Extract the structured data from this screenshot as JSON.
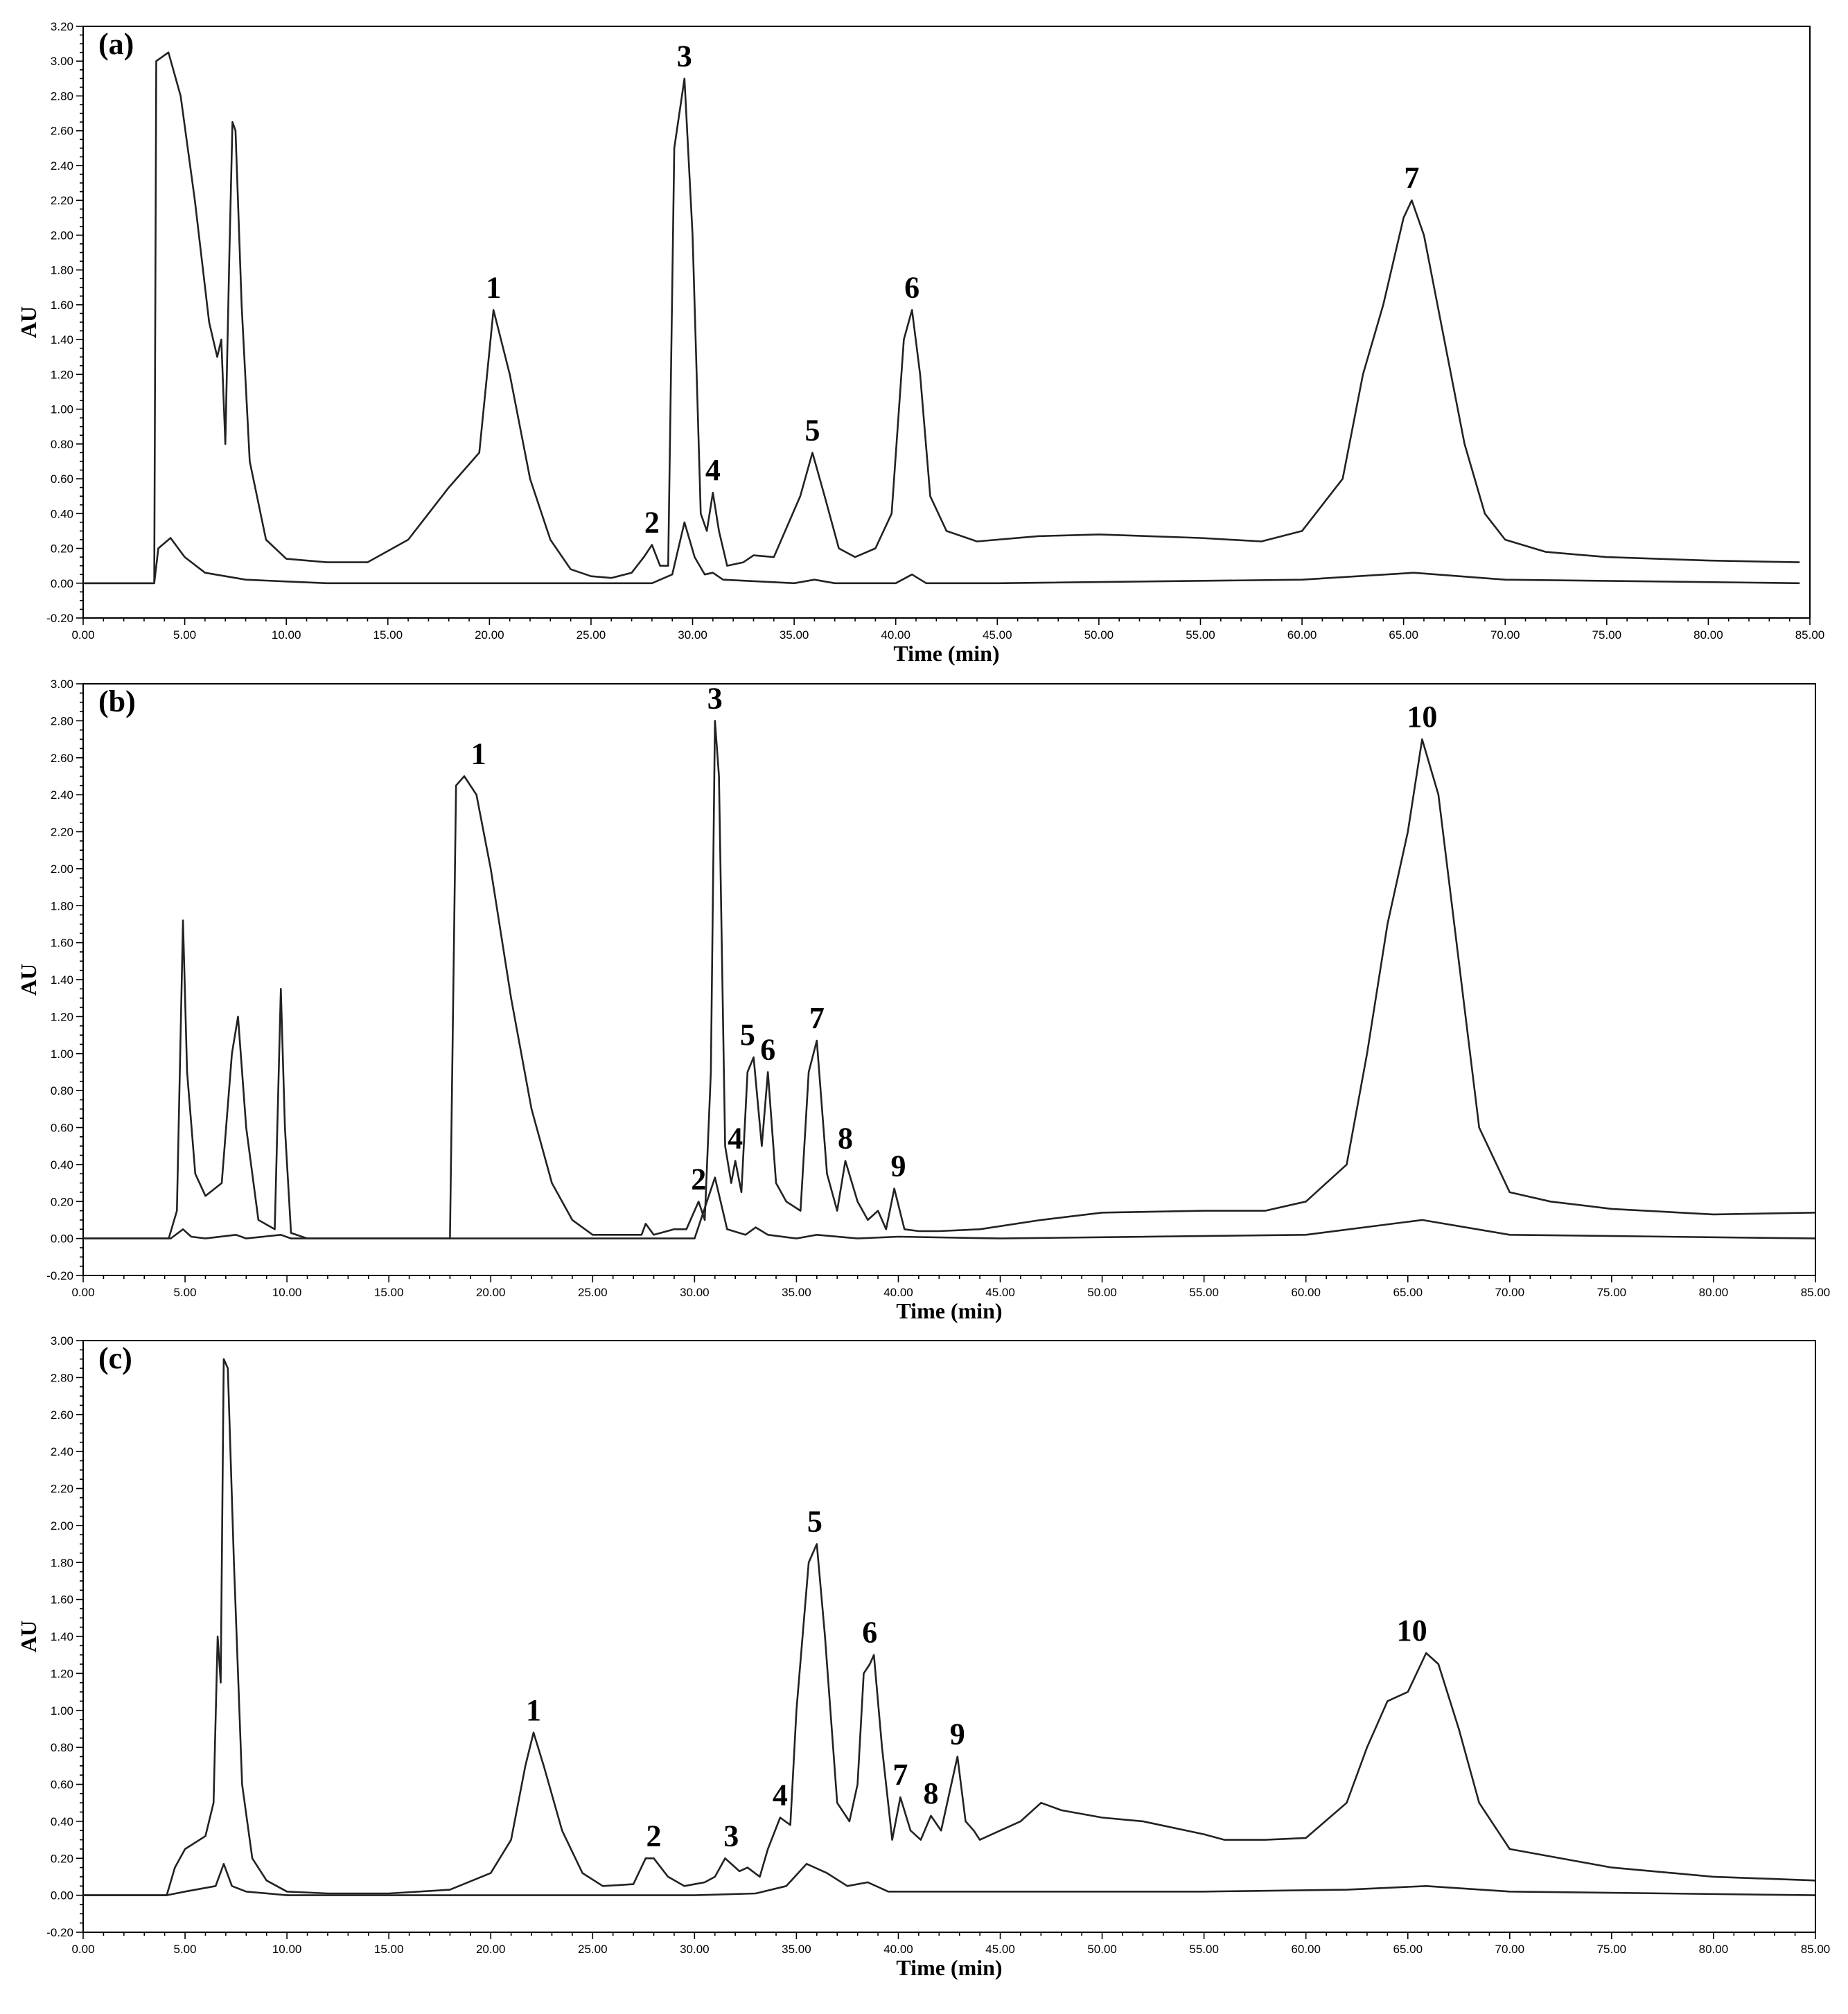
{
  "chart_data": [
    {
      "type": "line",
      "panel_label": "(a)",
      "xlabel": "Time (min)",
      "ylabel": "AU",
      "xlim": [
        0,
        85
      ],
      "ylim": [
        -0.2,
        3.2
      ],
      "x_ticks": [
        "0.00",
        "5.00",
        "10.00",
        "15.00",
        "20.00",
        "25.00",
        "30.00",
        "35.00",
        "40.00",
        "45.00",
        "50.00",
        "55.00",
        "60.00",
        "65.00",
        "70.00",
        "75.00",
        "80.00",
        "85.00"
      ],
      "y_ticks": [
        "-0.20",
        "0.00",
        "0.20",
        "0.40",
        "0.60",
        "0.80",
        "1.00",
        "1.20",
        "1.40",
        "1.60",
        "1.80",
        "2.00",
        "2.20",
        "2.40",
        "2.60",
        "2.80",
        "3.00",
        "3.20"
      ],
      "series": [
        {
          "name": "upper trace",
          "x": [
            0,
            3.5,
            3.6,
            4.2,
            4.8,
            5.5,
            6.2,
            6.6,
            6.8,
            7.0,
            7.2,
            7.35,
            7.5,
            7.8,
            8.2,
            9,
            10,
            12,
            14,
            16,
            18,
            19.5,
            20.2,
            21,
            22,
            23,
            24,
            25,
            26,
            27,
            27.6,
            28,
            28.4,
            28.8,
            29.1,
            29.6,
            30.0,
            30.4,
            30.7,
            31.0,
            31.3,
            31.7,
            32.5,
            33,
            34,
            35.3,
            35.9,
            36.5,
            37.2,
            38,
            39,
            39.8,
            40.4,
            40.8,
            41.2,
            41.7,
            42.5,
            44,
            47,
            50,
            55,
            58,
            60,
            62,
            63,
            64,
            65,
            65.4,
            66,
            67,
            68,
            69,
            70,
            72,
            75,
            80,
            84.5
          ],
          "values": [
            0,
            0,
            3.0,
            3.05,
            2.8,
            2.2,
            1.5,
            1.3,
            1.4,
            0.8,
            1.9,
            2.65,
            2.6,
            1.6,
            0.7,
            0.25,
            0.14,
            0.12,
            0.12,
            0.25,
            0.55,
            0.75,
            1.57,
            1.2,
            0.6,
            0.25,
            0.08,
            0.04,
            0.03,
            0.06,
            0.15,
            0.22,
            0.1,
            0.1,
            2.5,
            2.9,
            2.0,
            0.4,
            0.3,
            0.52,
            0.3,
            0.1,
            0.12,
            0.16,
            0.15,
            0.5,
            0.75,
            0.5,
            0.2,
            0.15,
            0.2,
            0.4,
            1.4,
            1.57,
            1.2,
            0.5,
            0.3,
            0.24,
            0.27,
            0.28,
            0.26,
            0.24,
            0.3,
            0.6,
            1.2,
            1.6,
            2.1,
            2.2,
            2.0,
            1.4,
            0.8,
            0.4,
            0.25,
            0.18,
            0.15,
            0.13,
            0.12
          ]
        },
        {
          "name": "lower trace",
          "x": [
            0,
            3.5,
            3.7,
            4.3,
            5.0,
            6,
            7,
            8,
            10,
            12,
            28,
            29,
            29.6,
            30.1,
            30.6,
            31.0,
            31.5,
            35,
            36,
            37,
            40,
            40.8,
            41.5,
            45,
            60,
            65.5,
            70,
            84.5
          ],
          "values": [
            0,
            0,
            0.2,
            0.26,
            0.15,
            0.06,
            0.04,
            0.02,
            0.01,
            0.0,
            0.0,
            0.05,
            0.35,
            0.15,
            0.05,
            0.06,
            0.02,
            0.0,
            0.02,
            0.0,
            0.0,
            0.05,
            0.0,
            0.0,
            0.02,
            0.06,
            0.02,
            0.0
          ]
        }
      ],
      "peak_labels": [
        {
          "text": "1",
          "x": 20.2,
          "y": 1.57
        },
        {
          "text": "2",
          "x": 28.0,
          "y": 0.22
        },
        {
          "text": "3",
          "x": 29.6,
          "y": 2.9
        },
        {
          "text": "4",
          "x": 31.0,
          "y": 0.52
        },
        {
          "text": "5",
          "x": 35.9,
          "y": 0.75
        },
        {
          "text": "6",
          "x": 40.8,
          "y": 1.57
        },
        {
          "text": "7",
          "x": 65.4,
          "y": 2.2
        }
      ]
    },
    {
      "type": "line",
      "panel_label": "(b)",
      "xlabel": "Time (min)",
      "ylabel": "AU",
      "xlim": [
        0,
        85
      ],
      "ylim": [
        -0.2,
        3.0
      ],
      "x_ticks": [
        "0.00",
        "5.00",
        "10.00",
        "15.00",
        "20.00",
        "25.00",
        "30.00",
        "35.00",
        "40.00",
        "45.00",
        "50.00",
        "55.00",
        "60.00",
        "65.00",
        "70.00",
        "75.00",
        "80.00",
        "85.00"
      ],
      "y_ticks": [
        "-0.20",
        "0.00",
        "0.20",
        "0.40",
        "0.60",
        "0.80",
        "1.00",
        "1.20",
        "1.40",
        "1.60",
        "1.80",
        "2.00",
        "2.20",
        "2.40",
        "2.60",
        "2.80",
        "3.00"
      ],
      "series": [
        {
          "name": "upper trace",
          "x": [
            0,
            4.2,
            4.6,
            4.9,
            5.1,
            5.5,
            6.0,
            6.8,
            7.3,
            7.6,
            8.0,
            8.6,
            9.4,
            9.7,
            9.9,
            10.2,
            11,
            12,
            15,
            18.0,
            18.3,
            18.7,
            19.3,
            20,
            21,
            22,
            23,
            24,
            25,
            27.4,
            27.6,
            28,
            29,
            29.6,
            30.2,
            30.5,
            30.8,
            31.0,
            31.2,
            31.5,
            31.8,
            32.0,
            32.3,
            32.6,
            32.9,
            33.3,
            33.6,
            34,
            34.5,
            35.2,
            35.6,
            36.0,
            36.5,
            37.0,
            37.4,
            38,
            38.5,
            39,
            39.4,
            39.8,
            40.3,
            41,
            42,
            44,
            47,
            50,
            55,
            58,
            60,
            62,
            63,
            64,
            65,
            65.7,
            66.5,
            67.5,
            68.5,
            70,
            72,
            75,
            80,
            85
          ],
          "values": [
            0,
            0,
            0.15,
            1.72,
            0.9,
            0.35,
            0.23,
            0.3,
            1.0,
            1.2,
            0.6,
            0.1,
            0.05,
            1.35,
            0.6,
            0.03,
            0.0,
            0.0,
            0.0,
            0.0,
            2.45,
            2.5,
            2.4,
            2.0,
            1.3,
            0.7,
            0.3,
            0.1,
            0.02,
            0.02,
            0.08,
            0.02,
            0.05,
            0.05,
            0.2,
            0.1,
            0.9,
            2.8,
            2.5,
            0.5,
            0.3,
            0.42,
            0.25,
            0.9,
            0.98,
            0.5,
            0.9,
            0.3,
            0.2,
            0.15,
            0.9,
            1.07,
            0.35,
            0.15,
            0.42,
            0.2,
            0.1,
            0.15,
            0.05,
            0.27,
            0.05,
            0.04,
            0.04,
            0.05,
            0.1,
            0.14,
            0.15,
            0.15,
            0.2,
            0.4,
            1.0,
            1.7,
            2.2,
            2.7,
            2.4,
            1.5,
            0.6,
            0.25,
            0.2,
            0.16,
            0.13,
            0.14
          ]
        },
        {
          "name": "lower trace",
          "x": [
            0,
            4.3,
            4.9,
            5.3,
            6,
            7.5,
            8,
            9.7,
            10.2,
            12,
            30,
            31.0,
            31.6,
            32.5,
            33.0,
            33.6,
            35,
            36,
            38,
            40,
            45,
            60,
            65.7,
            70,
            85
          ],
          "values": [
            0,
            0,
            0.05,
            0.01,
            0.0,
            0.02,
            0.0,
            0.02,
            0.0,
            0.0,
            0.0,
            0.33,
            0.05,
            0.02,
            0.06,
            0.02,
            0.0,
            0.02,
            0.0,
            0.01,
            0.0,
            0.02,
            0.1,
            0.02,
            0.0
          ]
        }
      ],
      "peak_labels": [
        {
          "text": "1",
          "x": 19.4,
          "y": 2.5
        },
        {
          "text": "2",
          "x": 30.2,
          "y": 0.2
        },
        {
          "text": "3",
          "x": 31.0,
          "y": 2.8
        },
        {
          "text": "4",
          "x": 32.0,
          "y": 0.42
        },
        {
          "text": "5",
          "x": 32.6,
          "y": 0.98
        },
        {
          "text": "6",
          "x": 33.6,
          "y": 0.9
        },
        {
          "text": "7",
          "x": 36.0,
          "y": 1.07
        },
        {
          "text": "8",
          "x": 37.4,
          "y": 0.42
        },
        {
          "text": "9",
          "x": 40.0,
          "y": 0.27
        },
        {
          "text": "10",
          "x": 65.7,
          "y": 2.7
        }
      ]
    },
    {
      "type": "line",
      "panel_label": "(c)",
      "xlabel": "Time (min)",
      "ylabel": "AU",
      "xlim": [
        0,
        85
      ],
      "ylim": [
        -0.2,
        3.0
      ],
      "x_ticks": [
        "0.00",
        "5.00",
        "10.00",
        "15.00",
        "20.00",
        "25.00",
        "30.00",
        "35.00",
        "40.00",
        "45.00",
        "50.00",
        "55.00",
        "60.00",
        "65.00",
        "70.00",
        "75.00",
        "80.00",
        "85.00"
      ],
      "y_ticks": [
        "-0.20",
        "0.00",
        "0.20",
        "0.40",
        "0.60",
        "0.80",
        "1.00",
        "1.20",
        "1.40",
        "1.60",
        "1.80",
        "2.00",
        "2.20",
        "2.40",
        "2.60",
        "2.80",
        "3.00"
      ],
      "series": [
        {
          "name": "upper trace",
          "x": [
            0,
            4.1,
            4.5,
            5.0,
            6.0,
            6.4,
            6.6,
            6.75,
            6.9,
            7.1,
            7.4,
            7.8,
            8.3,
            9,
            10,
            12,
            15,
            18,
            20,
            21,
            21.7,
            22.1,
            22.6,
            23.5,
            24.5,
            25.5,
            27,
            27.6,
            28,
            28.7,
            29.5,
            30.5,
            31,
            31.5,
            32.2,
            32.6,
            33.2,
            33.6,
            34.2,
            34.7,
            35.0,
            35.6,
            36.0,
            36.4,
            37.0,
            37.6,
            38.0,
            38.3,
            38.6,
            38.8,
            39.2,
            39.7,
            40.1,
            40.6,
            41.1,
            41.6,
            42.1,
            42.6,
            42.9,
            43.3,
            43.7,
            44,
            45,
            46,
            47,
            48,
            50,
            52,
            55,
            56,
            58,
            60,
            62,
            63,
            64,
            65,
            65.9,
            66.5,
            67.5,
            68.5,
            70,
            75,
            80,
            85
          ],
          "values": [
            0,
            0,
            0.15,
            0.25,
            0.32,
            0.5,
            1.4,
            1.15,
            2.9,
            2.85,
            1.8,
            0.6,
            0.2,
            0.08,
            0.02,
            0.01,
            0.01,
            0.03,
            0.12,
            0.3,
            0.7,
            0.88,
            0.7,
            0.35,
            0.12,
            0.05,
            0.06,
            0.2,
            0.2,
            0.1,
            0.05,
            0.07,
            0.1,
            0.2,
            0.13,
            0.15,
            0.1,
            0.25,
            0.42,
            0.38,
            1.0,
            1.8,
            1.9,
            1.4,
            0.5,
            0.4,
            0.6,
            1.2,
            1.25,
            1.3,
            0.8,
            0.3,
            0.53,
            0.35,
            0.3,
            0.43,
            0.35,
            0.6,
            0.75,
            0.4,
            0.35,
            0.3,
            0.35,
            0.4,
            0.5,
            0.46,
            0.42,
            0.4,
            0.33,
            0.3,
            0.3,
            0.31,
            0.5,
            0.8,
            1.05,
            1.1,
            1.31,
            1.25,
            0.9,
            0.5,
            0.25,
            0.15,
            0.1,
            0.08
          ]
        },
        {
          "name": "lower trace",
          "x": [
            0,
            4.1,
            5,
            6.5,
            6.9,
            7.3,
            8,
            10,
            30,
            33,
            34.5,
            35.5,
            36.5,
            37.5,
            38.5,
            39.5,
            41,
            43,
            45,
            55,
            62,
            65.9,
            70,
            85
          ],
          "values": [
            0,
            0,
            0.02,
            0.05,
            0.17,
            0.05,
            0.02,
            0.0,
            0.0,
            0.01,
            0.05,
            0.17,
            0.12,
            0.05,
            0.07,
            0.02,
            0.02,
            0.02,
            0.02,
            0.02,
            0.03,
            0.05,
            0.02,
            0.0
          ]
        }
      ],
      "peak_labels": [
        {
          "text": "1",
          "x": 22.1,
          "y": 0.88
        },
        {
          "text": "2",
          "x": 28.0,
          "y": 0.2
        },
        {
          "text": "3",
          "x": 31.8,
          "y": 0.2
        },
        {
          "text": "4",
          "x": 34.2,
          "y": 0.42
        },
        {
          "text": "5",
          "x": 35.9,
          "y": 1.9
        },
        {
          "text": "6",
          "x": 38.6,
          "y": 1.3
        },
        {
          "text": "7",
          "x": 40.1,
          "y": 0.53
        },
        {
          "text": "8",
          "x": 41.6,
          "y": 0.43
        },
        {
          "text": "9",
          "x": 42.9,
          "y": 0.75
        },
        {
          "text": "10",
          "x": 65.2,
          "y": 1.31
        }
      ]
    }
  ]
}
